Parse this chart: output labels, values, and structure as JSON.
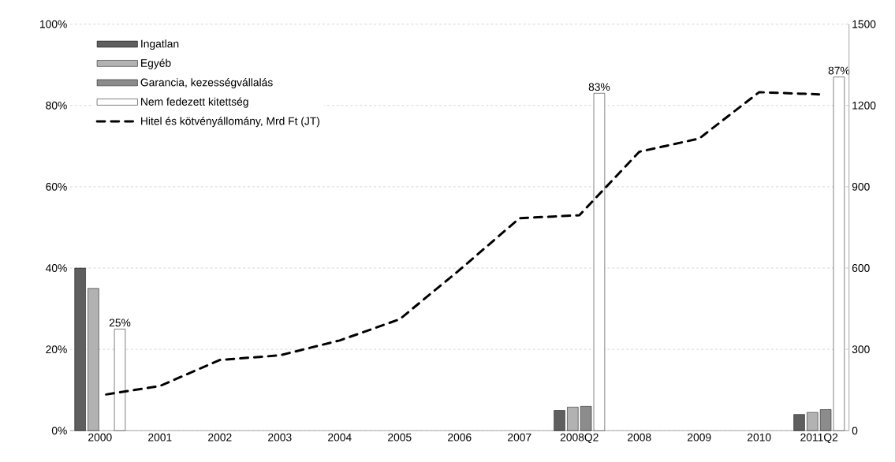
{
  "chart_data": {
    "type": "bar",
    "categories": [
      "2000",
      "2001",
      "2002",
      "2003",
      "2004",
      "2005",
      "2006",
      "2007",
      "2008Q2",
      "2008",
      "2009",
      "2010",
      "2011Q2"
    ],
    "series": [
      {
        "name": "Ingatlan",
        "color": "#5f5f5f",
        "values": [
          40,
          null,
          null,
          null,
          null,
          null,
          null,
          null,
          5,
          null,
          null,
          null,
          4
        ]
      },
      {
        "name": "Egyéb",
        "color": "#b2b2b2",
        "values": [
          35,
          null,
          null,
          null,
          null,
          null,
          null,
          null,
          5.8,
          null,
          null,
          null,
          4.5
        ]
      },
      {
        "name": "Garancia, kezességvállalás",
        "color": "#8c8c8c",
        "values": [
          null,
          null,
          null,
          null,
          null,
          null,
          null,
          null,
          6,
          null,
          null,
          null,
          5.2
        ]
      },
      {
        "name": "Nem fedezett kitettség",
        "color": "#ffffff",
        "values": [
          25,
          null,
          null,
          null,
          null,
          null,
          null,
          null,
          83,
          null,
          null,
          null,
          87
        ],
        "value_labels": [
          "25%",
          null,
          null,
          null,
          null,
          null,
          null,
          null,
          "83%",
          null,
          null,
          null,
          "87%"
        ]
      },
      {
        "name": "Hitel és kötvényállomány, Mrd Ft (JT)",
        "type": "line",
        "axis": "y2",
        "color": "#000000",
        "line_style": "dashed",
        "values": [
          130,
          165,
          261,
          278,
          333,
          411,
          593,
          784,
          795,
          1029,
          1078,
          1249,
          1241
        ]
      }
    ],
    "ylim": [
      0,
      100
    ],
    "yticks": [
      {
        "value": 0,
        "label": "0%"
      },
      {
        "value": 20,
        "label": "20%"
      },
      {
        "value": 40,
        "label": "40%"
      },
      {
        "value": 60,
        "label": "60%"
      },
      {
        "value": 80,
        "label": "80%"
      },
      {
        "value": 100,
        "label": "100%"
      }
    ],
    "y2lim": [
      0,
      1500
    ],
    "y2ticks": [
      0,
      300,
      600,
      900,
      1200,
      1500
    ],
    "grid": "y",
    "legend": "top left"
  }
}
